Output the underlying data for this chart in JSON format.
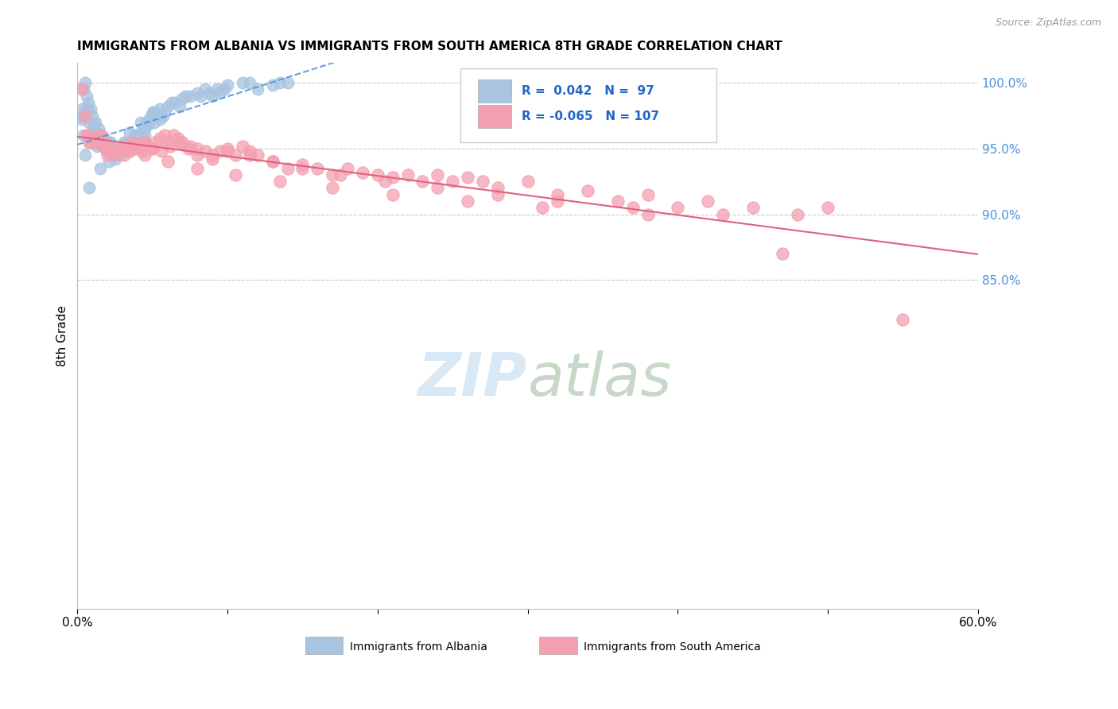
{
  "title": "IMMIGRANTS FROM ALBANIA VS IMMIGRANTS FROM SOUTH AMERICA 8TH GRADE CORRELATION CHART",
  "source": "Source: ZipAtlas.com",
  "ylabel": "8th Grade",
  "albania_R": 0.042,
  "albania_N": 97,
  "sa_R": -0.065,
  "sa_N": 107,
  "albania_color": "#a8c4e0",
  "sa_color": "#f4a0b0",
  "albania_trend_color": "#4a90d9",
  "sa_trend_color": "#e06080",
  "watermark_color": "#d8e8f4",
  "xmin": 0.0,
  "xmax": 60.0,
  "ymin": 60.0,
  "ymax": 101.5,
  "albania_x": [
    0.2,
    0.3,
    0.4,
    0.5,
    0.6,
    0.7,
    0.8,
    0.9,
    1.0,
    1.1,
    1.2,
    1.3,
    1.4,
    1.5,
    1.6,
    1.7,
    1.8,
    1.9,
    2.0,
    2.1,
    2.2,
    2.3,
    2.4,
    2.5,
    2.6,
    2.7,
    2.8,
    2.9,
    3.0,
    3.1,
    3.2,
    3.3,
    3.4,
    3.5,
    3.6,
    3.7,
    3.8,
    3.9,
    4.0,
    4.1,
    4.2,
    4.3,
    4.4,
    4.5,
    4.6,
    4.7,
    4.8,
    4.9,
    5.0,
    5.1,
    5.2,
    5.5,
    5.8,
    6.0,
    6.5,
    7.0,
    7.5,
    8.0,
    8.5,
    9.0,
    9.5,
    10.0,
    11.0,
    12.0,
    13.0,
    14.0,
    2.1,
    1.5,
    0.8,
    0.5,
    0.3,
    1.8,
    2.5,
    3.2,
    0.6,
    1.1,
    2.0,
    3.5,
    4.2,
    5.1,
    6.3,
    7.2,
    8.8,
    9.3,
    0.4,
    1.3,
    2.8,
    4.5,
    5.7,
    6.8,
    8.2,
    9.8,
    11.5,
    13.5,
    2.2,
    3.8,
    5.5
  ],
  "albania_y": [
    97.5,
    98.0,
    99.5,
    100.0,
    99.0,
    98.5,
    97.0,
    98.0,
    97.5,
    96.5,
    97.0,
    96.0,
    96.5,
    95.5,
    96.0,
    95.8,
    95.5,
    95.0,
    95.2,
    95.5,
    95.0,
    94.8,
    95.0,
    94.5,
    94.8,
    95.0,
    94.5,
    95.2,
    94.8,
    95.5,
    95.0,
    95.2,
    94.8,
    95.5,
    95.2,
    95.0,
    95.5,
    95.8,
    96.0,
    95.5,
    96.2,
    95.8,
    96.5,
    96.0,
    97.0,
    96.8,
    97.2,
    97.5,
    97.8,
    97.0,
    97.5,
    98.0,
    97.8,
    98.2,
    98.5,
    98.8,
    99.0,
    99.2,
    99.5,
    99.0,
    99.3,
    99.8,
    100.0,
    99.5,
    99.8,
    100.0,
    94.0,
    93.5,
    92.0,
    94.5,
    97.2,
    95.8,
    94.2,
    95.5,
    98.0,
    96.8,
    95.3,
    96.2,
    97.0,
    97.8,
    98.5,
    99.0,
    99.2,
    99.5,
    96.0,
    95.2,
    94.6,
    96.5,
    97.5,
    98.2,
    99.0,
    99.5,
    100.0,
    100.0,
    95.5,
    96.0,
    97.2
  ],
  "sa_x": [
    0.3,
    0.5,
    0.7,
    0.9,
    1.1,
    1.3,
    1.5,
    1.7,
    1.9,
    2.1,
    2.3,
    2.5,
    2.7,
    2.9,
    3.1,
    3.3,
    3.5,
    3.7,
    3.9,
    4.1,
    4.3,
    4.5,
    4.7,
    4.9,
    5.2,
    5.5,
    5.8,
    6.1,
    6.4,
    6.7,
    7.0,
    7.5,
    8.0,
    8.5,
    9.0,
    9.5,
    10.0,
    10.5,
    11.0,
    11.5,
    12.0,
    13.0,
    14.0,
    15.0,
    16.0,
    17.0,
    18.0,
    19.0,
    20.0,
    21.0,
    22.0,
    23.0,
    24.0,
    25.0,
    26.0,
    27.0,
    28.0,
    30.0,
    32.0,
    34.0,
    36.0,
    38.0,
    40.0,
    42.0,
    45.0,
    48.0,
    50.0,
    55.0,
    0.8,
    1.4,
    2.0,
    2.6,
    3.2,
    3.8,
    4.4,
    5.0,
    5.6,
    6.2,
    6.8,
    7.4,
    8.0,
    9.0,
    10.0,
    11.5,
    13.0,
    15.0,
    17.5,
    20.5,
    24.0,
    28.0,
    32.0,
    37.0,
    43.0,
    0.6,
    1.8,
    3.0,
    4.5,
    6.0,
    8.0,
    10.5,
    13.5,
    17.0,
    21.0,
    26.0,
    31.0,
    38.0,
    47.0
  ],
  "sa_y": [
    99.5,
    97.5,
    96.0,
    95.5,
    95.8,
    95.5,
    96.0,
    95.2,
    95.0,
    94.8,
    95.0,
    94.5,
    94.8,
    95.0,
    94.5,
    95.2,
    94.8,
    95.5,
    95.0,
    95.2,
    94.8,
    95.5,
    95.2,
    95.0,
    95.5,
    95.8,
    96.0,
    95.5,
    96.0,
    95.8,
    95.5,
    95.2,
    95.0,
    94.8,
    94.5,
    94.8,
    95.0,
    94.5,
    95.2,
    94.8,
    94.5,
    94.0,
    93.5,
    93.8,
    93.5,
    93.0,
    93.5,
    93.2,
    93.0,
    92.8,
    93.0,
    92.5,
    93.0,
    92.5,
    92.8,
    92.5,
    92.0,
    92.5,
    91.5,
    91.8,
    91.0,
    91.5,
    90.5,
    91.0,
    90.5,
    90.0,
    90.5,
    82.0,
    95.5,
    95.8,
    94.5,
    94.8,
    95.0,
    95.2,
    95.5,
    95.0,
    94.8,
    95.2,
    95.5,
    95.0,
    94.5,
    94.2,
    94.8,
    94.5,
    94.0,
    93.5,
    93.0,
    92.5,
    92.0,
    91.5,
    91.0,
    90.5,
    90.0,
    96.0,
    95.5,
    95.0,
    94.5,
    94.0,
    93.5,
    93.0,
    92.5,
    92.0,
    91.5,
    91.0,
    90.5,
    90.0,
    87.0
  ]
}
